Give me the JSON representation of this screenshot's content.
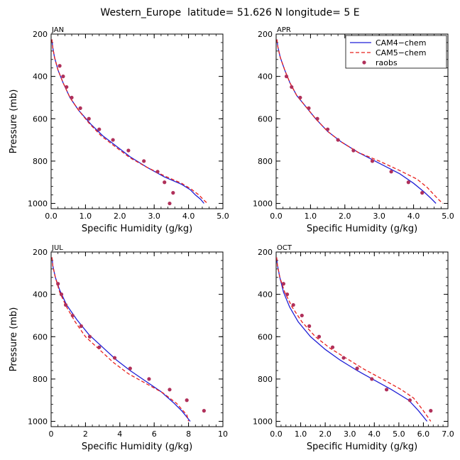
{
  "title": "Western_Europe  latitude= 51.626 N longitude= 5 E",
  "legend": {
    "entries": [
      {
        "label": "CAM4−chem",
        "kind": "line",
        "color": "#1f1fd6",
        "dash": "solid"
      },
      {
        "label": "CAM5−chem",
        "kind": "line",
        "color": "#e8201c",
        "dash": "dashed"
      },
      {
        "label": "raobs",
        "kind": "marker",
        "color": "#b0305a"
      }
    ],
    "placement": "top-right of APR panel"
  },
  "colors": {
    "cam4": "#1f1fd6",
    "cam5": "#e8201c",
    "raobs": "#b0305a"
  },
  "chart_data": [
    {
      "type": "line",
      "panel": "JAN",
      "xlabel": "Specific Humidity (g/kg)",
      "ylabel": "Pressure (mb)",
      "xlim": [
        0,
        5
      ],
      "ylim": [
        200,
        1025
      ],
      "y_inverted": true,
      "xticks": [
        0,
        1,
        2,
        3,
        4,
        5
      ],
      "xtick_labels": [
        "0.0",
        "1.0",
        "2.0",
        "3.0",
        "4.0",
        "5.0"
      ],
      "yticks": [
        200,
        400,
        600,
        800,
        1000
      ],
      "ytick_labels": [
        "200",
        "400",
        "600",
        "800",
        "1000"
      ],
      "series": [
        {
          "name": "CAM4−chem",
          "style": "line",
          "points": [
            [
              0.02,
              225
            ],
            [
              0.05,
              265
            ],
            [
              0.1,
              310
            ],
            [
              0.2,
              370
            ],
            [
              0.35,
              430
            ],
            [
              0.55,
              500
            ],
            [
              0.8,
              560
            ],
            [
              1.15,
              625
            ],
            [
              1.5,
              680
            ],
            [
              1.9,
              730
            ],
            [
              2.3,
              780
            ],
            [
              2.8,
              830
            ],
            [
              3.3,
              875
            ],
            [
              3.8,
              910
            ],
            [
              4.05,
              935
            ],
            [
              4.2,
              960
            ],
            [
              4.35,
              980
            ],
            [
              4.45,
              1000
            ]
          ]
        },
        {
          "name": "CAM5−chem",
          "style": "dashed",
          "points": [
            [
              0.02,
              225
            ],
            [
              0.05,
              265
            ],
            [
              0.1,
              310
            ],
            [
              0.2,
              370
            ],
            [
              0.35,
              430
            ],
            [
              0.55,
              500
            ],
            [
              0.8,
              560
            ],
            [
              1.1,
              620
            ],
            [
              1.45,
              680
            ],
            [
              1.85,
              730
            ],
            [
              2.3,
              785
            ],
            [
              2.8,
              830
            ],
            [
              3.3,
              870
            ],
            [
              3.8,
              905
            ],
            [
              4.1,
              935
            ],
            [
              4.3,
              960
            ],
            [
              4.45,
              985
            ],
            [
              4.55,
              1000
            ]
          ]
        },
        {
          "name": "raobs",
          "style": "marker",
          "points": [
            [
              0.25,
              350
            ],
            [
              0.35,
              400
            ],
            [
              0.45,
              450
            ],
            [
              0.6,
              500
            ],
            [
              0.85,
              550
            ],
            [
              1.1,
              600
            ],
            [
              1.4,
              650
            ],
            [
              1.8,
              700
            ],
            [
              2.25,
              750
            ],
            [
              2.7,
              800
            ],
            [
              3.1,
              850
            ],
            [
              3.3,
              900
            ],
            [
              3.55,
              950
            ],
            [
              3.45,
              1000
            ]
          ]
        }
      ]
    },
    {
      "type": "line",
      "panel": "APR",
      "xlabel": "Specific Humidity (g/kg)",
      "ylabel": "",
      "xlim": [
        0,
        5
      ],
      "ylim": [
        200,
        1025
      ],
      "y_inverted": true,
      "xticks": [
        0,
        1,
        2,
        3,
        4,
        5
      ],
      "xtick_labels": [
        "0.0",
        "1.0",
        "2.0",
        "3.0",
        "4.0",
        "5.0"
      ],
      "yticks": [
        200,
        400,
        600,
        800,
        1000
      ],
      "ytick_labels": [
        "200",
        "400",
        "600",
        "800",
        "1000"
      ],
      "series": [
        {
          "name": "CAM4−chem",
          "style": "line",
          "points": [
            [
              0.02,
              225
            ],
            [
              0.05,
              260
            ],
            [
              0.12,
              310
            ],
            [
              0.25,
              370
            ],
            [
              0.4,
              430
            ],
            [
              0.6,
              490
            ],
            [
              0.85,
              540
            ],
            [
              1.15,
              600
            ],
            [
              1.5,
              660
            ],
            [
              1.9,
              710
            ],
            [
              2.4,
              760
            ],
            [
              3.0,
              810
            ],
            [
              3.6,
              860
            ],
            [
              4.0,
              905
            ],
            [
              4.3,
              945
            ],
            [
              4.5,
              975
            ],
            [
              4.65,
              1000
            ]
          ]
        },
        {
          "name": "CAM5−chem",
          "style": "dashed",
          "points": [
            [
              0.02,
              225
            ],
            [
              0.05,
              260
            ],
            [
              0.12,
              310
            ],
            [
              0.25,
              370
            ],
            [
              0.4,
              430
            ],
            [
              0.6,
              490
            ],
            [
              0.85,
              540
            ],
            [
              1.15,
              600
            ],
            [
              1.5,
              660
            ],
            [
              1.9,
              710
            ],
            [
              2.4,
              760
            ],
            [
              3.0,
              800
            ],
            [
              3.6,
              845
            ],
            [
              4.1,
              885
            ],
            [
              4.4,
              925
            ],
            [
              4.6,
              960
            ],
            [
              4.75,
              985
            ],
            [
              4.85,
              1000
            ]
          ]
        },
        {
          "name": "raobs",
          "style": "marker",
          "points": [
            [
              0.3,
              400
            ],
            [
              0.45,
              450
            ],
            [
              0.7,
              500
            ],
            [
              0.95,
              550
            ],
            [
              1.2,
              600
            ],
            [
              1.5,
              650
            ],
            [
              1.8,
              700
            ],
            [
              2.25,
              750
            ],
            [
              2.8,
              800
            ],
            [
              3.35,
              850
            ],
            [
              3.85,
              900
            ],
            [
              4.25,
              950
            ]
          ]
        }
      ]
    },
    {
      "type": "line",
      "panel": "JUL",
      "xlabel": "Specific Humidity (g/kg)",
      "ylabel": "Pressure (mb)",
      "xlim": [
        0,
        10
      ],
      "ylim": [
        200,
        1025
      ],
      "y_inverted": true,
      "xticks": [
        0,
        2,
        4,
        6,
        8,
        10
      ],
      "xtick_labels": [
        "0",
        "2",
        "4",
        "6",
        "8",
        "10"
      ],
      "yticks": [
        200,
        400,
        600,
        800,
        1000
      ],
      "ytick_labels": [
        "200",
        "400",
        "600",
        "800",
        "1000"
      ],
      "series": [
        {
          "name": "CAM4−chem",
          "style": "line",
          "points": [
            [
              0.05,
              225
            ],
            [
              0.1,
              265
            ],
            [
              0.25,
              320
            ],
            [
              0.5,
              380
            ],
            [
              0.9,
              450
            ],
            [
              1.5,
              520
            ],
            [
              2.2,
              590
            ],
            [
              3.0,
              650
            ],
            [
              3.8,
              710
            ],
            [
              4.6,
              760
            ],
            [
              5.5,
              810
            ],
            [
              6.4,
              860
            ],
            [
              7.1,
              910
            ],
            [
              7.6,
              950
            ],
            [
              8.1,
              1000
            ]
          ]
        },
        {
          "name": "CAM5−chem",
          "style": "dashed",
          "points": [
            [
              0.05,
              225
            ],
            [
              0.1,
              265
            ],
            [
              0.25,
              320
            ],
            [
              0.5,
              390
            ],
            [
              0.9,
              460
            ],
            [
              1.4,
              530
            ],
            [
              2.0,
              600
            ],
            [
              2.8,
              660
            ],
            [
              3.6,
              720
            ],
            [
              4.5,
              775
            ],
            [
              5.5,
              820
            ],
            [
              6.5,
              865
            ],
            [
              7.3,
              915
            ],
            [
              7.9,
              970
            ],
            [
              8.0,
              1000
            ]
          ]
        },
        {
          "name": "raobs",
          "style": "marker",
          "points": [
            [
              0.4,
              350
            ],
            [
              0.6,
              400
            ],
            [
              0.85,
              450
            ],
            [
              1.25,
              500
            ],
            [
              1.75,
              550
            ],
            [
              2.25,
              600
            ],
            [
              2.8,
              650
            ],
            [
              3.7,
              700
            ],
            [
              4.6,
              750
            ],
            [
              5.7,
              800
            ],
            [
              6.9,
              850
            ],
            [
              7.9,
              900
            ],
            [
              8.9,
              950
            ]
          ]
        }
      ]
    },
    {
      "type": "line",
      "panel": "OCT",
      "xlabel": "Specific Humidity (g/kg)",
      "ylabel": "",
      "xlim": [
        0,
        7
      ],
      "ylim": [
        200,
        1025
      ],
      "y_inverted": true,
      "xticks": [
        0,
        1,
        2,
        3,
        4,
        5,
        6,
        7
      ],
      "xtick_labels": [
        "0.0",
        "1.0",
        "2.0",
        "3.0",
        "4.0",
        "5.0",
        "6.0",
        "7.0"
      ],
      "yticks": [
        200,
        400,
        600,
        800,
        1000
      ],
      "ytick_labels": [
        "200",
        "400",
        "600",
        "800",
        "1000"
      ],
      "series": [
        {
          "name": "CAM4−chem",
          "style": "line",
          "points": [
            [
              0.02,
              225
            ],
            [
              0.05,
              260
            ],
            [
              0.15,
              320
            ],
            [
              0.3,
              390
            ],
            [
              0.55,
              460
            ],
            [
              0.9,
              530
            ],
            [
              1.4,
              600
            ],
            [
              2.0,
              660
            ],
            [
              2.6,
              710
            ],
            [
              3.3,
              760
            ],
            [
              4.0,
              805
            ],
            [
              4.7,
              850
            ],
            [
              5.4,
              900
            ],
            [
              5.8,
              950
            ],
            [
              6.15,
              1000
            ]
          ]
        },
        {
          "name": "CAM5−chem",
          "style": "dashed",
          "points": [
            [
              0.02,
              225
            ],
            [
              0.05,
              260
            ],
            [
              0.15,
              320
            ],
            [
              0.35,
              390
            ],
            [
              0.65,
              460
            ],
            [
              1.05,
              530
            ],
            [
              1.6,
              600
            ],
            [
              2.2,
              655
            ],
            [
              2.9,
              705
            ],
            [
              3.6,
              755
            ],
            [
              4.4,
              805
            ],
            [
              5.1,
              850
            ],
            [
              5.6,
              890
            ],
            [
              6.0,
              950
            ],
            [
              6.3,
              1000
            ]
          ]
        },
        {
          "name": "raobs",
          "style": "marker",
          "points": [
            [
              0.3,
              350
            ],
            [
              0.45,
              400
            ],
            [
              0.7,
              450
            ],
            [
              1.05,
              500
            ],
            [
              1.35,
              550
            ],
            [
              1.75,
              600
            ],
            [
              2.3,
              650
            ],
            [
              2.75,
              700
            ],
            [
              3.3,
              750
            ],
            [
              3.9,
              800
            ],
            [
              4.5,
              850
            ],
            [
              5.45,
              900
            ],
            [
              6.3,
              950
            ]
          ]
        }
      ]
    }
  ]
}
